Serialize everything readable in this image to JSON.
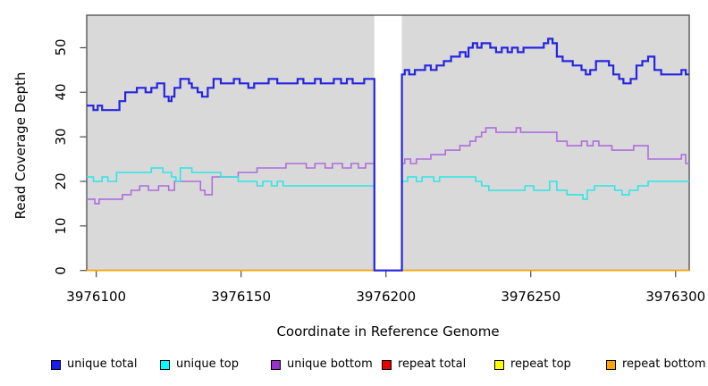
{
  "chart_data": {
    "type": "line",
    "subtype": "step",
    "title": "",
    "xlabel": "Coordinate in Reference Genome",
    "ylabel": "Read Coverage Depth",
    "x_ticks": [
      3976100,
      3976150,
      3976200,
      3976250,
      3976300
    ],
    "y_ticks": [
      0,
      10,
      20,
      30,
      40,
      50
    ],
    "xlim": [
      3976096.7,
      3976304.7
    ],
    "ylim": [
      0,
      57.3
    ],
    "grid": false,
    "plot_bg": "#d9d9d9",
    "frame_color": "#4a4a4a",
    "gap_region": {
      "x_start": 3976196,
      "x_end": 3976205.5,
      "color": "#ffffff"
    },
    "legend_position": "bottom",
    "series": [
      {
        "name": "unique total",
        "color": "#2525e0",
        "legend_fill": "#1c1cf0",
        "width": 2.2,
        "points": [
          [
            3976096.7,
            37
          ],
          [
            3976099,
            36
          ],
          [
            3976100.5,
            37
          ],
          [
            3976102,
            36
          ],
          [
            3976108,
            38
          ],
          [
            3976110,
            40
          ],
          [
            3976114,
            41
          ],
          [
            3976117,
            40
          ],
          [
            3976119,
            41
          ],
          [
            3976121,
            42
          ],
          [
            3976123.5,
            39
          ],
          [
            3976125,
            38
          ],
          [
            3976126,
            39
          ],
          [
            3976127,
            41
          ],
          [
            3976129,
            43
          ],
          [
            3976132,
            42
          ],
          [
            3976133,
            41
          ],
          [
            3976135,
            40
          ],
          [
            3976136.5,
            39
          ],
          [
            3976138.5,
            41
          ],
          [
            3976140.5,
            43
          ],
          [
            3976143,
            42
          ],
          [
            3976147.5,
            43
          ],
          [
            3976149.5,
            42
          ],
          [
            3976152.5,
            41
          ],
          [
            3976154.5,
            42
          ],
          [
            3976159.5,
            43
          ],
          [
            3976162.5,
            42
          ],
          [
            3976169.5,
            43
          ],
          [
            3976171.5,
            42
          ],
          [
            3976175.5,
            43
          ],
          [
            3976177.5,
            42
          ],
          [
            3976182,
            43
          ],
          [
            3976184.5,
            42
          ],
          [
            3976186.5,
            43
          ],
          [
            3976188.5,
            42
          ],
          [
            3976192.5,
            43
          ],
          [
            3976196,
            0
          ],
          [
            3976205.5,
            44
          ],
          [
            3976206.5,
            45
          ],
          [
            3976208,
            44
          ],
          [
            3976210,
            45
          ],
          [
            3976213.5,
            46
          ],
          [
            3976215.5,
            45
          ],
          [
            3976217.5,
            46
          ],
          [
            3976220,
            47
          ],
          [
            3976222.5,
            48
          ],
          [
            3976225.5,
            49
          ],
          [
            3976227.5,
            48
          ],
          [
            3976228.5,
            50
          ],
          [
            3976230,
            51
          ],
          [
            3976231.5,
            50
          ],
          [
            3976233,
            51
          ],
          [
            3976236,
            50
          ],
          [
            3976238,
            49
          ],
          [
            3976240,
            50
          ],
          [
            3976242,
            49
          ],
          [
            3976243.5,
            50
          ],
          [
            3976245.5,
            49
          ],
          [
            3976247.5,
            50
          ],
          [
            3976254.5,
            51
          ],
          [
            3976256,
            52
          ],
          [
            3976257.5,
            51
          ],
          [
            3976259,
            48
          ],
          [
            3976261,
            47
          ],
          [
            3976264.5,
            46
          ],
          [
            3976267.5,
            45
          ],
          [
            3976269,
            44
          ],
          [
            3976270.5,
            45
          ],
          [
            3976272.5,
            47
          ],
          [
            3976277,
            46
          ],
          [
            3976278.5,
            44
          ],
          [
            3976280.5,
            43
          ],
          [
            3976282,
            42
          ],
          [
            3976284.5,
            43
          ],
          [
            3976286.5,
            46
          ],
          [
            3976288.5,
            47
          ],
          [
            3976290.5,
            48
          ],
          [
            3976292.7,
            45
          ],
          [
            3976295,
            44
          ],
          [
            3976302,
            45
          ],
          [
            3976303.5,
            44
          ]
        ]
      },
      {
        "name": "unique top",
        "color": "#2ee6e6",
        "legend_fill": "#00ffff",
        "width": 1.6,
        "points": [
          [
            3976096.7,
            21
          ],
          [
            3976099,
            20
          ],
          [
            3976102,
            21
          ],
          [
            3976104,
            20
          ],
          [
            3976107,
            22
          ],
          [
            3976119,
            23
          ],
          [
            3976123,
            22
          ],
          [
            3976126,
            21
          ],
          [
            3976127.5,
            20
          ],
          [
            3976129,
            23
          ],
          [
            3976133,
            22
          ],
          [
            3976143,
            21
          ],
          [
            3976149,
            20
          ],
          [
            3976155.5,
            19
          ],
          [
            3976157.5,
            20
          ],
          [
            3976160.5,
            19
          ],
          [
            3976162.5,
            20
          ],
          [
            3976164.5,
            19
          ],
          [
            3976196,
            0
          ],
          [
            3976205.5,
            20
          ],
          [
            3976207.5,
            21
          ],
          [
            3976210.5,
            20
          ],
          [
            3976212.5,
            21
          ],
          [
            3976216.5,
            20
          ],
          [
            3976218.5,
            21
          ],
          [
            3976231,
            20
          ],
          [
            3976233,
            19
          ],
          [
            3976235.5,
            18
          ],
          [
            3976248,
            19
          ],
          [
            3976251,
            18
          ],
          [
            3976256.5,
            20
          ],
          [
            3976259,
            18
          ],
          [
            3976262.5,
            17
          ],
          [
            3976268,
            16
          ],
          [
            3976269.5,
            18
          ],
          [
            3976272,
            19
          ],
          [
            3976279,
            18
          ],
          [
            3976281.5,
            17
          ],
          [
            3976284,
            18
          ],
          [
            3976287,
            19
          ],
          [
            3976290.5,
            20
          ]
        ]
      },
      {
        "name": "unique bottom",
        "color": "#ad6edd",
        "legend_fill": "#9932cc",
        "width": 1.6,
        "points": [
          [
            3976096.7,
            16
          ],
          [
            3976099.5,
            15
          ],
          [
            3976101,
            16
          ],
          [
            3976109,
            17
          ],
          [
            3976112,
            18
          ],
          [
            3976115,
            19
          ],
          [
            3976118,
            18
          ],
          [
            3976121.5,
            19
          ],
          [
            3976125,
            18
          ],
          [
            3976127,
            20
          ],
          [
            3976136,
            18
          ],
          [
            3976137.5,
            17
          ],
          [
            3976140,
            21
          ],
          [
            3976149,
            22
          ],
          [
            3976155.5,
            23
          ],
          [
            3976165.5,
            24
          ],
          [
            3976172.5,
            23
          ],
          [
            3976175.5,
            24
          ],
          [
            3976179,
            23
          ],
          [
            3976181.5,
            24
          ],
          [
            3976185,
            23
          ],
          [
            3976188,
            24
          ],
          [
            3976190.5,
            23
          ],
          [
            3976193,
            24
          ],
          [
            3976196,
            0
          ],
          [
            3976205.5,
            24
          ],
          [
            3976206.5,
            25
          ],
          [
            3976208.5,
            24
          ],
          [
            3976210.5,
            25
          ],
          [
            3976215.5,
            26
          ],
          [
            3976220.5,
            27
          ],
          [
            3976225.5,
            28
          ],
          [
            3976229,
            29
          ],
          [
            3976231,
            30
          ],
          [
            3976233,
            31
          ],
          [
            3976234.5,
            32
          ],
          [
            3976238,
            31
          ],
          [
            3976245,
            32
          ],
          [
            3976246.5,
            31
          ],
          [
            3976259,
            29
          ],
          [
            3976262.5,
            28
          ],
          [
            3976267.5,
            29
          ],
          [
            3976269.5,
            28
          ],
          [
            3976271.5,
            29
          ],
          [
            3976273.5,
            28
          ],
          [
            3976278,
            27
          ],
          [
            3976285.5,
            28
          ],
          [
            3976290.5,
            25
          ],
          [
            3976302,
            26
          ],
          [
            3976303.5,
            24
          ]
        ]
      },
      {
        "name": "repeat total",
        "color": "#e60000",
        "legend_fill": "#e60000",
        "width": 1.6,
        "points": [
          [
            3976096.7,
            0
          ]
        ]
      },
      {
        "name": "repeat top",
        "color": "#f5f500",
        "legend_fill": "#ffff00",
        "width": 1.6,
        "points": [
          [
            3976096.7,
            0
          ]
        ]
      },
      {
        "name": "repeat bottom",
        "color": "#ffa500",
        "legend_fill": "#ffa500",
        "width": 1.6,
        "points": [
          [
            3976096.7,
            0
          ]
        ]
      }
    ]
  }
}
